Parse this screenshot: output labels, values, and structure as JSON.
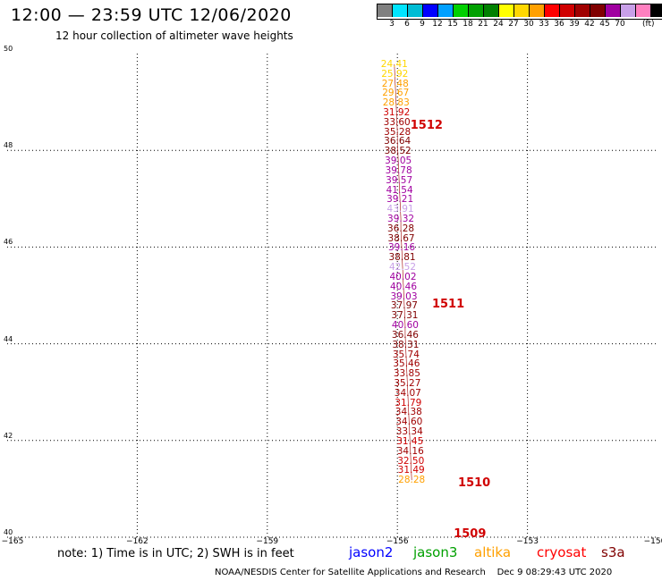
{
  "header": {
    "title": "12:00 — 23:59 UTC 12/06/2020",
    "subtitle": "12 hour collection of altimeter wave heights"
  },
  "color_scale": {
    "colors": [
      "#808080",
      "#00e5ff",
      "#00bcd4",
      "#0000ff",
      "#00a0ff",
      "#00d000",
      "#00a000",
      "#008000",
      "#ffff00",
      "#ffd700",
      "#ffa000",
      "#ff0000",
      "#d00000",
      "#a00000",
      "#800000",
      "#a000a0",
      "#c8a0e8",
      "#ff80c0",
      "#000000"
    ],
    "labels": [
      "3",
      "6",
      "9",
      "12",
      "15",
      "18",
      "21",
      "24",
      "27",
      "30",
      "33",
      "36",
      "39",
      "42",
      "45",
      "70"
    ],
    "unit": "(ft)"
  },
  "map": {
    "lat_ticks": [
      "50",
      "48",
      "46",
      "44",
      "42",
      "40"
    ],
    "lon_ticks": [
      "−165",
      "−162",
      "−159",
      "−156",
      "−153",
      "−150"
    ]
  },
  "passes": [
    {
      "id": "1512",
      "lat": 48.5,
      "lon": -155.7
    },
    {
      "id": "1511",
      "lat": 44.8,
      "lon": -155.2
    },
    {
      "id": "1510",
      "lat": 41.1,
      "lon": -154.6
    },
    {
      "id": "1509",
      "lat": 40.05,
      "lon": -154.7
    }
  ],
  "wave_heights": [
    {
      "v": "24.41",
      "lat": 49.78,
      "lon": -156.07,
      "c": "#ffd700"
    },
    {
      "v": "25.92",
      "lat": 49.58,
      "lon": -156.06,
      "c": "#ffd700"
    },
    {
      "v": "27.48",
      "lat": 49.38,
      "lon": -156.05,
      "c": "#ffa000"
    },
    {
      "v": "29.67",
      "lat": 49.18,
      "lon": -156.04,
      "c": "#ffa000"
    },
    {
      "v": "28.83",
      "lat": 48.98,
      "lon": -156.03,
      "c": "#ffa000"
    },
    {
      "v": "31.92",
      "lat": 48.78,
      "lon": -156.02,
      "c": "#d00000"
    },
    {
      "v": "33.60",
      "lat": 48.58,
      "lon": -156.01,
      "c": "#a00000"
    },
    {
      "v": "35.28",
      "lat": 48.38,
      "lon": -156.0,
      "c": "#a00000"
    },
    {
      "v": "36.64",
      "lat": 48.18,
      "lon": -156.0,
      "c": "#800000"
    },
    {
      "v": "38.52",
      "lat": 47.98,
      "lon": -155.99,
      "c": "#800000"
    },
    {
      "v": "39.05",
      "lat": 47.78,
      "lon": -155.98,
      "c": "#a000a0"
    },
    {
      "v": "39.78",
      "lat": 47.58,
      "lon": -155.97,
      "c": "#a000a0"
    },
    {
      "v": "39.57",
      "lat": 47.38,
      "lon": -155.96,
      "c": "#a000a0"
    },
    {
      "v": "41.54",
      "lat": 47.18,
      "lon": -155.95,
      "c": "#a000a0"
    },
    {
      "v": "39.21",
      "lat": 46.98,
      "lon": -155.94,
      "c": "#a000a0"
    },
    {
      "v": "43.91",
      "lat": 46.78,
      "lon": -155.93,
      "c": "#c8a0e8"
    },
    {
      "v": "39.32",
      "lat": 46.58,
      "lon": -155.92,
      "c": "#a000a0"
    },
    {
      "v": "36.28",
      "lat": 46.38,
      "lon": -155.92,
      "c": "#800000"
    },
    {
      "v": "38.67",
      "lat": 46.18,
      "lon": -155.91,
      "c": "#800000"
    },
    {
      "v": "39.16",
      "lat": 45.98,
      "lon": -155.9,
      "c": "#a000a0"
    },
    {
      "v": "38.81",
      "lat": 45.78,
      "lon": -155.89,
      "c": "#800000"
    },
    {
      "v": "42.52",
      "lat": 45.58,
      "lon": -155.88,
      "c": "#c8a0e8"
    },
    {
      "v": "40.02",
      "lat": 45.38,
      "lon": -155.87,
      "c": "#a000a0"
    },
    {
      "v": "40.46",
      "lat": 45.18,
      "lon": -155.86,
      "c": "#a000a0"
    },
    {
      "v": "39.03",
      "lat": 44.98,
      "lon": -155.85,
      "c": "#a000a0"
    },
    {
      "v": "37.97",
      "lat": 44.78,
      "lon": -155.84,
      "c": "#800000"
    },
    {
      "v": "37.31",
      "lat": 44.58,
      "lon": -155.83,
      "c": "#800000"
    },
    {
      "v": "40.60",
      "lat": 44.38,
      "lon": -155.82,
      "c": "#a000a0"
    },
    {
      "v": "36.46",
      "lat": 44.18,
      "lon": -155.82,
      "c": "#800000"
    },
    {
      "v": "38.31",
      "lat": 43.98,
      "lon": -155.81,
      "c": "#800000"
    },
    {
      "v": "35.74",
      "lat": 43.78,
      "lon": -155.8,
      "c": "#a00000"
    },
    {
      "v": "35.46",
      "lat": 43.58,
      "lon": -155.79,
      "c": "#a00000"
    },
    {
      "v": "33.85",
      "lat": 43.38,
      "lon": -155.78,
      "c": "#a00000"
    },
    {
      "v": "35.27",
      "lat": 43.18,
      "lon": -155.77,
      "c": "#a00000"
    },
    {
      "v": "34.07",
      "lat": 42.98,
      "lon": -155.76,
      "c": "#a00000"
    },
    {
      "v": "31.79",
      "lat": 42.78,
      "lon": -155.75,
      "c": "#d00000"
    },
    {
      "v": "34.38",
      "lat": 42.58,
      "lon": -155.74,
      "c": "#a00000"
    },
    {
      "v": "34.60",
      "lat": 42.38,
      "lon": -155.73,
      "c": "#a00000"
    },
    {
      "v": "33.34",
      "lat": 42.18,
      "lon": -155.72,
      "c": "#a00000"
    },
    {
      "v": "31.45",
      "lat": 41.98,
      "lon": -155.71,
      "c": "#d00000"
    },
    {
      "v": "34.16",
      "lat": 41.78,
      "lon": -155.7,
      "c": "#a00000"
    },
    {
      "v": "32.50",
      "lat": 41.58,
      "lon": -155.69,
      "c": "#d00000"
    },
    {
      "v": "31.49",
      "lat": 41.38,
      "lon": -155.68,
      "c": "#d00000"
    },
    {
      "v": "28.28",
      "lat": 41.18,
      "lon": -155.67,
      "c": "#ffa000"
    }
  ],
  "footer": {
    "note": "note: 1) Time is in UTC; 2) SWH is in feet",
    "legend": [
      {
        "name": "jason2",
        "color": "#0000ff"
      },
      {
        "name": "jason3",
        "color": "#00a000"
      },
      {
        "name": "altika",
        "color": "#ffa000"
      },
      {
        "name": "cryosat",
        "color": "#ff0000"
      },
      {
        "name": "s3a",
        "color": "#800000"
      }
    ],
    "credit": "NOAA/NESDIS Center for Satellite Applications and Research",
    "timestamp": "Dec  9 08:29:43 UTC 2020"
  }
}
